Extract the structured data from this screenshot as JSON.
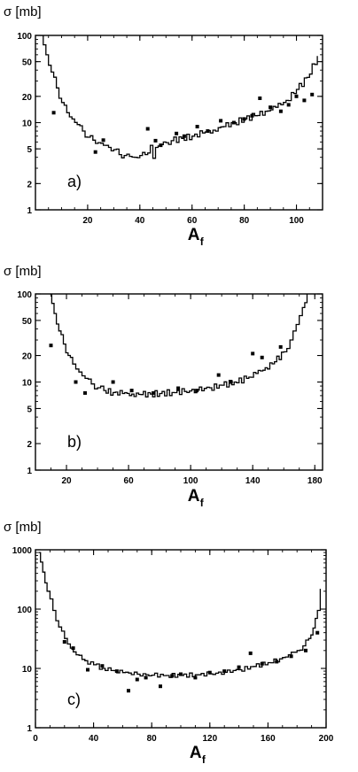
{
  "chart_data": [
    {
      "panel_label": "a)",
      "type": "line",
      "title": "",
      "ylabel": "σ [mb]",
      "xlabel_main": "A",
      "xlabel_sub": "f",
      "xlim": [
        0,
        110
      ],
      "ylim": [
        1,
        100
      ],
      "yscale": "log",
      "xticks": [
        20,
        40,
        60,
        80,
        100
      ],
      "xtick_labels": [
        "20",
        "40",
        "60",
        "80",
        "100"
      ],
      "yticks": [
        1,
        2,
        5,
        10,
        20,
        50,
        100
      ],
      "ytick_labels": [
        "1",
        "2",
        "5",
        "10",
        "20",
        "50",
        "100"
      ],
      "series": [
        {
          "style": "step",
          "x": [
            2,
            4,
            6,
            8,
            10,
            12,
            14,
            16,
            18,
            20,
            22,
            24,
            26,
            28,
            30,
            32,
            34,
            36,
            38,
            40,
            42,
            44,
            45,
            46,
            48,
            50,
            52,
            56,
            60,
            64,
            68,
            72,
            76,
            80,
            84,
            88,
            92,
            96,
            100,
            104,
            108
          ],
          "y": [
            100,
            60,
            38,
            25,
            17,
            13,
            11,
            9.5,
            8,
            6.8,
            6.3,
            5.9,
            5.5,
            5.2,
            4.9,
            4.3,
            4.2,
            4.1,
            4.0,
            4.2,
            4.3,
            5.5,
            3.9,
            5.2,
            5.6,
            5.9,
            6.2,
            6.6,
            7.0,
            7.6,
            8.2,
            9.0,
            10.0,
            11.0,
            12.0,
            13.5,
            15.0,
            18.0,
            24.0,
            33.0,
            58.0
          ]
        },
        {
          "style": "points",
          "x": [
            7,
            23,
            26,
            43,
            46,
            48,
            54,
            57,
            62,
            66,
            71,
            76,
            80,
            83,
            86,
            90,
            94,
            97,
            100,
            103,
            106
          ],
          "y": [
            13,
            4.6,
            6.3,
            8.5,
            6.2,
            5.5,
            7.5,
            7.0,
            9.0,
            8.0,
            10.5,
            10.0,
            11.0,
            12.0,
            19.0,
            15.0,
            13.5,
            16.0,
            20.0,
            18.0,
            21.0
          ]
        }
      ]
    },
    {
      "panel_label": "b)",
      "type": "line",
      "title": "",
      "ylabel": "σ [mb]",
      "xlabel_main": "A",
      "xlabel_sub": "f",
      "xlim": [
        0,
        185
      ],
      "ylim": [
        1,
        100
      ],
      "yscale": "log",
      "xticks": [
        20,
        60,
        100,
        140,
        180
      ],
      "xtick_labels": [
        "20",
        "60",
        "100",
        "140",
        "180"
      ],
      "yticks": [
        1,
        2,
        5,
        10,
        20,
        50,
        100
      ],
      "ytick_labels": [
        "1",
        "2",
        "5",
        "10",
        "20",
        "50",
        "100"
      ],
      "series": [
        {
          "style": "step",
          "x": [
            9,
            12,
            15,
            18,
            21,
            24,
            28,
            32,
            36,
            40,
            44,
            50,
            56,
            62,
            68,
            74,
            80,
            88,
            96,
            104,
            112,
            120,
            128,
            136,
            142,
            148,
            154,
            160,
            164,
            168,
            172,
            175
          ],
          "y": [
            100,
            60,
            38,
            27,
            20,
            16,
            13,
            11,
            9.5,
            8.6,
            8.0,
            7.6,
            7.4,
            7.3,
            7.2,
            7.3,
            7.4,
            7.6,
            7.8,
            8.1,
            8.6,
            9.2,
            10.0,
            11.0,
            12.5,
            14.5,
            17.0,
            22.0,
            30.0,
            45.0,
            70.0,
            100.0
          ]
        },
        {
          "style": "points",
          "x": [
            10,
            26,
            32,
            50,
            62,
            76,
            92,
            104,
            118,
            126,
            140,
            146,
            158
          ],
          "y": [
            26,
            10,
            7.5,
            10,
            8,
            7.5,
            8.5,
            8.0,
            12.0,
            10.0,
            21.0,
            19.0,
            25.0
          ]
        }
      ]
    },
    {
      "panel_label": "c)",
      "type": "line",
      "title": "",
      "ylabel": "σ [mb]",
      "xlabel_main": "A",
      "xlabel_sub": "f",
      "xlim": [
        0,
        200
      ],
      "ylim": [
        1,
        1000
      ],
      "yscale": "log",
      "xticks": [
        0,
        40,
        80,
        120,
        160,
        200
      ],
      "xtick_labels": [
        "0",
        "40",
        "80",
        "120",
        "160",
        "200"
      ],
      "yticks": [
        1,
        10,
        100,
        1000
      ],
      "ytick_labels": [
        "1",
        "10",
        "100",
        "1000"
      ],
      "series": [
        {
          "style": "step",
          "x": [
            2,
            5,
            8,
            12,
            16,
            20,
            24,
            28,
            34,
            40,
            46,
            52,
            60,
            70,
            80,
            90,
            100,
            110,
            120,
            130,
            140,
            150,
            160,
            168,
            174,
            180,
            184,
            188,
            191,
            194,
            196
          ],
          "y": [
            900,
            420,
            200,
            95,
            50,
            32,
            22,
            17,
            13.5,
            11.5,
            10.0,
            9.2,
            8.5,
            8.0,
            7.7,
            7.6,
            7.6,
            7.8,
            8.1,
            8.6,
            9.5,
            10.8,
            12.5,
            14.5,
            17.0,
            20.0,
            24.0,
            32.0,
            48.0,
            95.0,
            220.0
          ]
        },
        {
          "style": "points",
          "x": [
            20,
            26,
            36,
            46,
            56,
            64,
            70,
            76,
            86,
            94,
            100,
            110,
            120,
            130,
            140,
            148,
            156,
            166,
            176,
            186,
            194
          ],
          "y": [
            28,
            22,
            9.5,
            11,
            9,
            4.2,
            6.5,
            7.0,
            5.0,
            7.5,
            8.0,
            7.0,
            8.5,
            9.0,
            10.5,
            18.0,
            12.0,
            13.0,
            16.0,
            20.0,
            40.0
          ]
        }
      ]
    }
  ]
}
